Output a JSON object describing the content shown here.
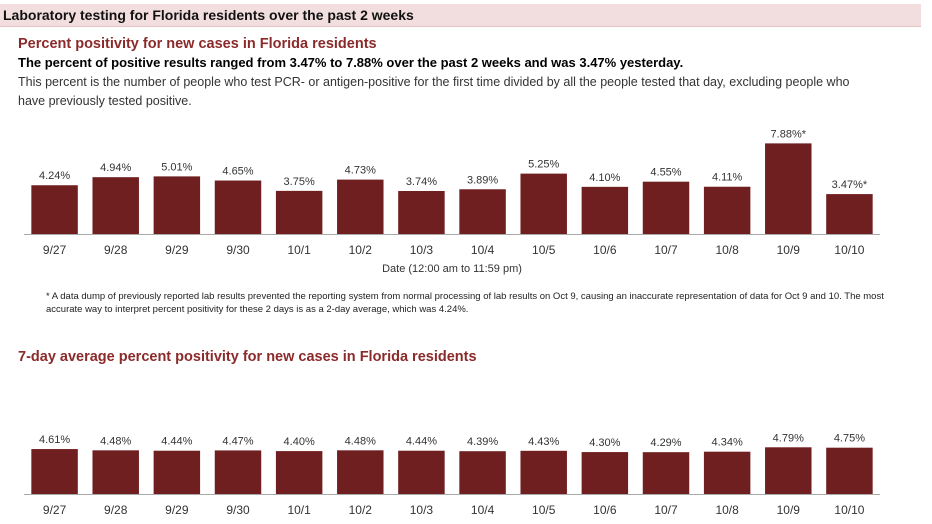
{
  "header": {
    "title": "Laboratory testing for Florida residents over the past 2 weeks"
  },
  "section1": {
    "title": "Percent positivity for new cases in Florida residents",
    "headline": "The percent of positive results ranged from 3.47% to 7.88% over the past 2 weeks and was 3.47% yesterday.",
    "description": "This percent is the number of people who test PCR- or antigen-positive for the first time divided by all the people tested that day, excluding people who have previously tested positive.",
    "x_title": "Date (12:00 am to 11:59 pm)",
    "footnote": "* A data dump of previously reported lab results prevented the reporting system from normal processing of lab results on Oct 9, causing an inaccurate representation of data for Oct 9 and 10. The most accurate way to interpret percent positivity for these 2 days is as a 2-day average, which was 4.24%."
  },
  "section2": {
    "title": "7-day average percent positivity for new cases in Florida residents"
  },
  "colors": {
    "bar": "#6f1f1f",
    "title": "#8b2a2a",
    "header_band": "#f2dede"
  },
  "chart_data": [
    {
      "type": "bar",
      "title": "Percent positivity for new cases in Florida residents",
      "xlabel": "Date (12:00 am to 11:59 pm)",
      "ylabel": "",
      "categories": [
        "9/27",
        "9/28",
        "9/29",
        "9/30",
        "10/1",
        "10/2",
        "10/3",
        "10/4",
        "10/5",
        "10/6",
        "10/7",
        "10/8",
        "10/9",
        "10/10"
      ],
      "values": [
        4.24,
        4.94,
        5.01,
        4.65,
        3.75,
        4.73,
        3.74,
        3.89,
        5.25,
        4.1,
        4.55,
        4.11,
        7.88,
        3.47
      ],
      "data_labels": [
        "4.24%",
        "4.94%",
        "5.01%",
        "4.65%",
        "3.75%",
        "4.73%",
        "3.74%",
        "3.89%",
        "5.25%",
        "4.10%",
        "4.55%",
        "4.11%",
        "7.88%*",
        "3.47%*"
      ],
      "ylim": [
        0,
        8
      ],
      "grid": false
    },
    {
      "type": "bar",
      "title": "7-day average percent positivity for new cases in Florida residents",
      "xlabel": "",
      "ylabel": "",
      "categories": [
        "9/27",
        "9/28",
        "9/29",
        "9/30",
        "10/1",
        "10/2",
        "10/3",
        "10/4",
        "10/5",
        "10/6",
        "10/7",
        "10/8",
        "10/9",
        "10/10"
      ],
      "values": [
        4.61,
        4.48,
        4.44,
        4.47,
        4.4,
        4.48,
        4.44,
        4.39,
        4.43,
        4.3,
        4.29,
        4.34,
        4.79,
        4.75
      ],
      "data_labels": [
        "4.61%",
        "4.48%",
        "4.44%",
        "4.47%",
        "4.40%",
        "4.48%",
        "4.44%",
        "4.39%",
        "4.43%",
        "4.30%",
        "4.29%",
        "4.34%",
        "4.79%",
        "4.75%"
      ],
      "ylim": [
        0,
        8
      ],
      "grid": false
    }
  ]
}
